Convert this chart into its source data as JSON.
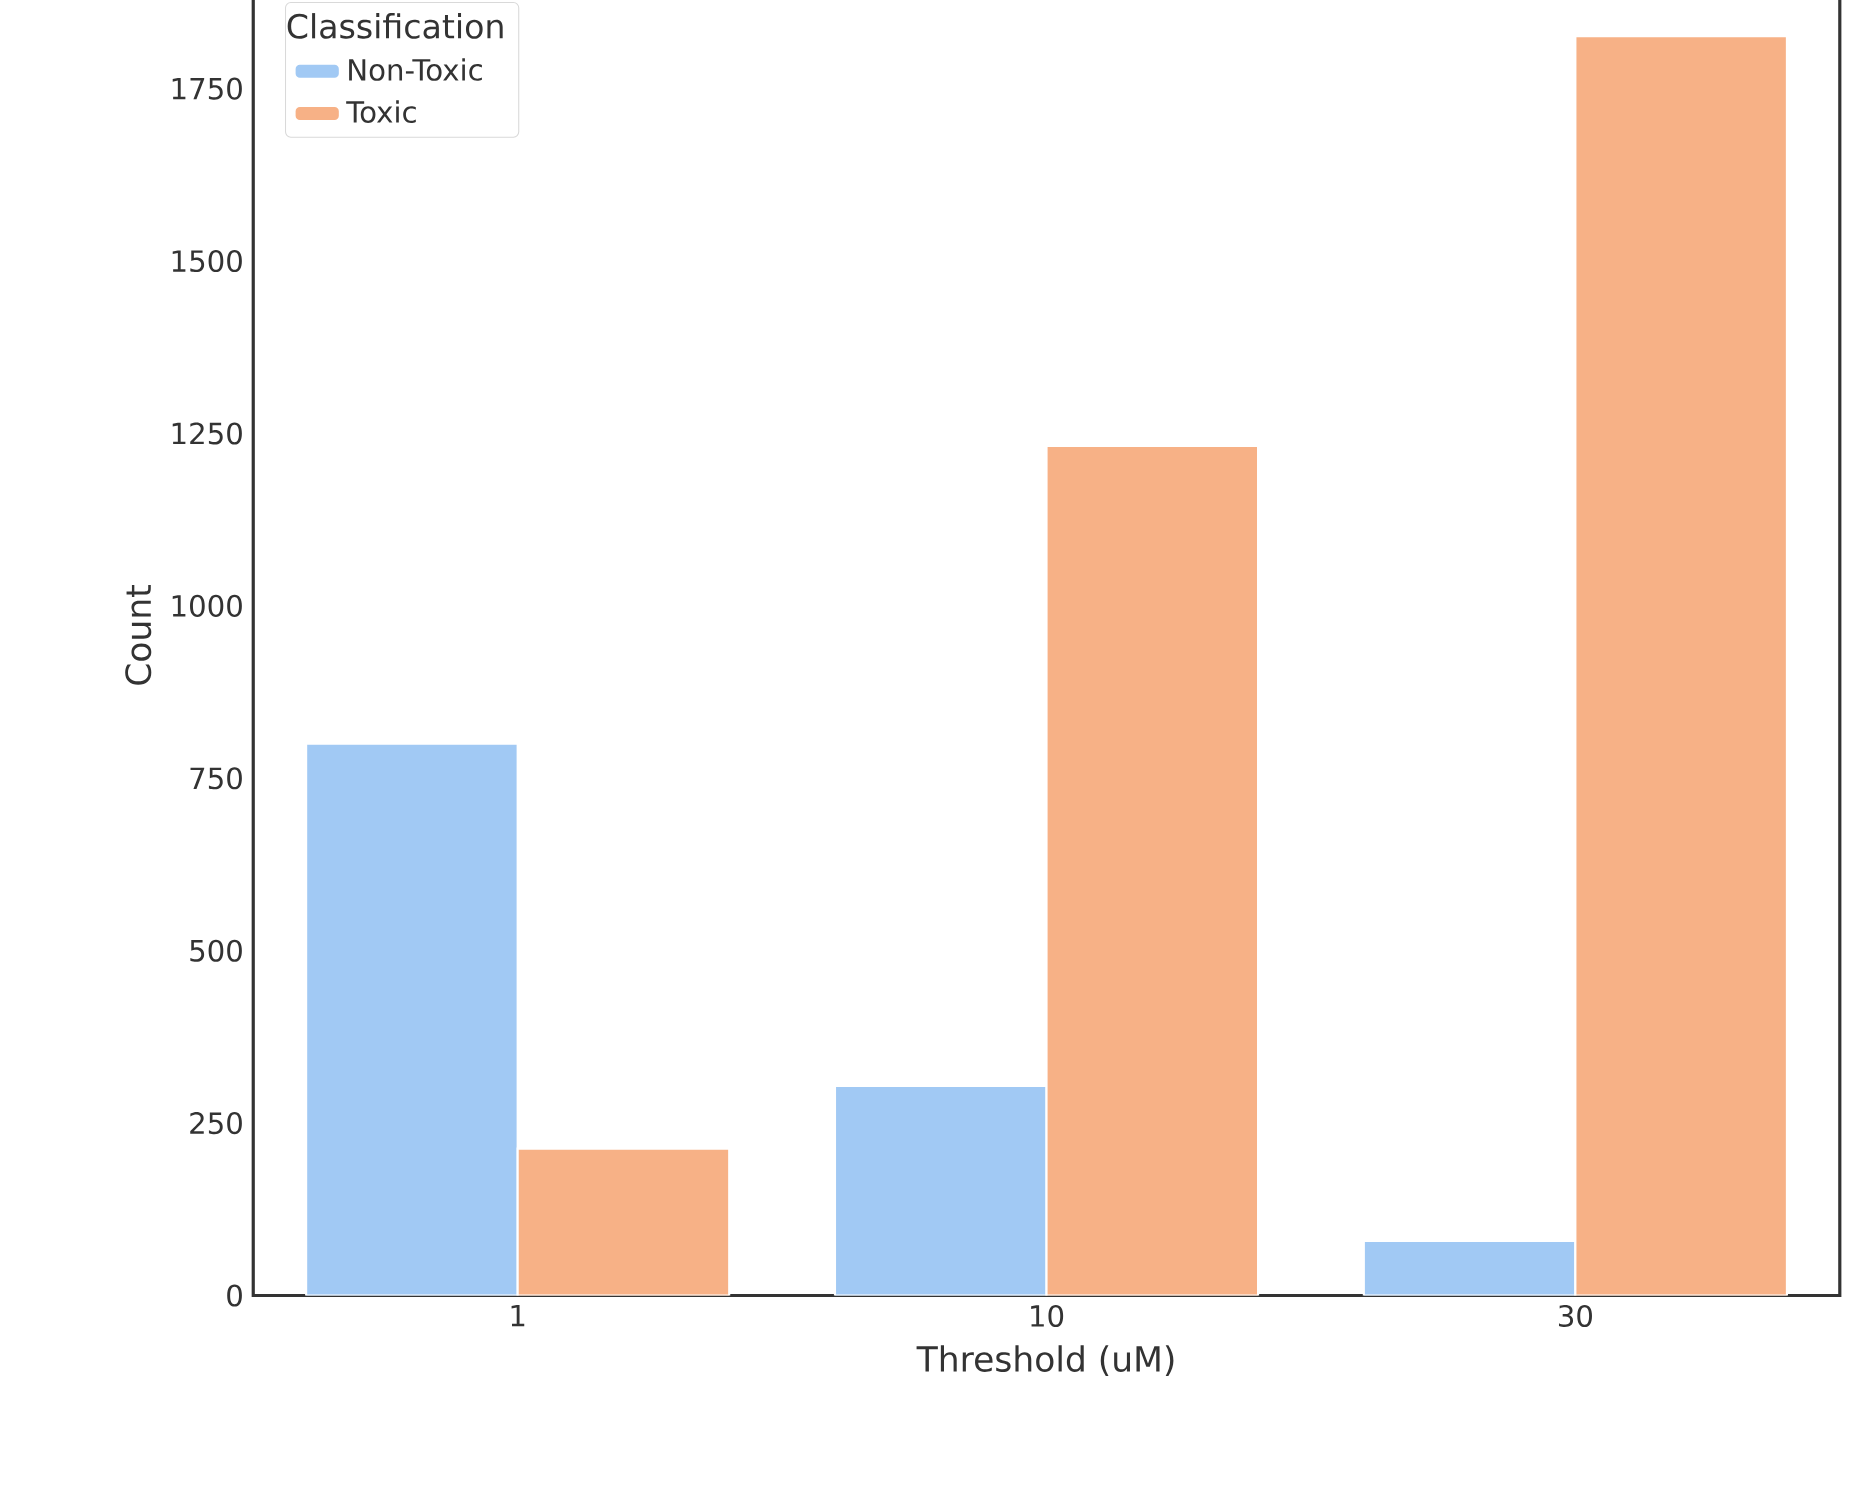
{
  "chart_data": {
    "type": "bar",
    "xlabel": "Threshold (uM)",
    "ylabel": "Count",
    "legend_title": "Classification",
    "categories": [
      "1",
      "10",
      "30"
    ],
    "series": [
      {
        "name": "Non-Toxic",
        "color": "#a1c9f4",
        "values": [
          800,
          304,
          79
        ]
      },
      {
        "name": "Toxic",
        "color": "#f7b186",
        "values": [
          213,
          1232,
          1826
        ]
      }
    ],
    "ylim": [
      0,
      1914
    ],
    "yticks": [
      0,
      250,
      500,
      750,
      1000,
      1250,
      1500,
      1750
    ],
    "grid": false,
    "legend": "top left"
  }
}
